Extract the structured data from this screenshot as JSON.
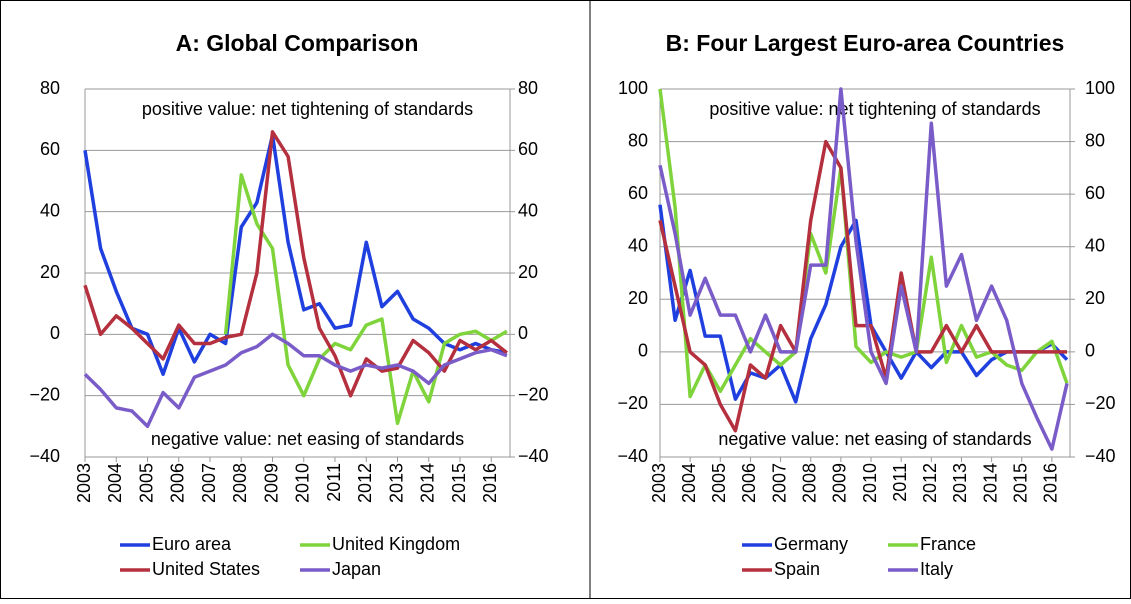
{
  "chart_data": [
    {
      "type": "line",
      "title": "A: Global Comparison",
      "annotations": [
        "positive value: net tightening of standards",
        "negative value: net easing of standards"
      ],
      "x": [
        2003,
        2003.5,
        2004,
        2004.5,
        2005,
        2005.5,
        2006,
        2006.5,
        2007,
        2007.5,
        2008,
        2008.5,
        2009,
        2009.5,
        2010,
        2010.5,
        2011,
        2011.5,
        2012,
        2012.5,
        2013,
        2013.5,
        2014,
        2014.5,
        2015,
        2015.5,
        2016,
        2016.5
      ],
      "xlim": [
        2003,
        2016.6
      ],
      "xticks": [
        2003,
        2004,
        2005,
        2006,
        2007,
        2008,
        2009,
        2010,
        2011,
        2012,
        2013,
        2014,
        2015,
        2016
      ],
      "ylim": [
        -40,
        80
      ],
      "yticks": [
        {
          "value": -40,
          "label": "−40"
        },
        {
          "value": -20,
          "label": "−20"
        },
        0,
        20,
        40,
        60,
        80
      ],
      "y2lim": [
        -40,
        80
      ],
      "y2ticks": [
        {
          "value": -40,
          "label": "−40"
        },
        {
          "value": -20,
          "label": "−20"
        },
        0,
        20,
        40,
        60,
        80
      ],
      "grid": true,
      "series": [
        {
          "name": "Euro area",
          "color": "#1f3fdf",
          "values": [
            60,
            28,
            14,
            2,
            0,
            -13,
            2,
            -9,
            0,
            -3,
            35,
            43,
            65,
            30,
            8,
            10,
            2,
            3,
            30,
            9,
            14,
            5,
            2,
            -3,
            -5,
            -3,
            -5,
            -6
          ]
        },
        {
          "name": "United Kingdom",
          "color": "#7ed43a",
          "values": [
            null,
            null,
            null,
            null,
            null,
            null,
            null,
            null,
            null,
            0,
            52,
            36,
            28,
            -10,
            -20,
            -8,
            -3,
            -5,
            3,
            5,
            -29,
            -12,
            -22,
            -3,
            0,
            1,
            -2,
            1
          ]
        },
        {
          "name": "United States",
          "color": "#b5303e",
          "values": [
            16,
            0,
            6,
            2,
            -3,
            -8,
            3,
            -3,
            -3,
            -1,
            0,
            20,
            66,
            58,
            25,
            2,
            -7,
            -20,
            -8,
            -12,
            -11,
            -2,
            -6,
            -12,
            -2,
            -5,
            -2,
            -6
          ]
        },
        {
          "name": "Japan",
          "color": "#7a5cc9",
          "values": [
            -13,
            -18,
            -24,
            -25,
            -30,
            -19,
            -24,
            -14,
            -12,
            -10,
            -6,
            -4,
            0,
            -3,
            -7,
            -7,
            -10,
            -12,
            -10,
            -11,
            -10,
            -12,
            -16,
            -10,
            -8,
            -6,
            -5,
            -7
          ]
        }
      ]
    },
    {
      "type": "line",
      "title": "B: Four Largest Euro-area Countries",
      "annotations": [
        "positive value: net tightening of standards",
        "negative value: net easing of standards"
      ],
      "x": [
        2003,
        2003.5,
        2004,
        2004.5,
        2005,
        2005.5,
        2006,
        2006.5,
        2007,
        2007.5,
        2008,
        2008.5,
        2009,
        2009.5,
        2010,
        2010.5,
        2011,
        2011.5,
        2012,
        2012.5,
        2013,
        2013.5,
        2014,
        2014.5,
        2015,
        2015.5,
        2016,
        2016.5
      ],
      "xlim": [
        2003,
        2016.6
      ],
      "xticks": [
        2003,
        2004,
        2005,
        2006,
        2007,
        2008,
        2009,
        2010,
        2011,
        2012,
        2013,
        2014,
        2015,
        2016
      ],
      "ylim": [
        -40,
        100
      ],
      "yticks": [
        {
          "value": -40,
          "label": "−40"
        },
        {
          "value": -20,
          "label": "−20"
        },
        0,
        20,
        40,
        60,
        80,
        100
      ],
      "y2lim": [
        -40,
        100
      ],
      "y2ticks": [
        {
          "value": -40,
          "label": "−40"
        },
        {
          "value": -20,
          "label": "−20"
        },
        0,
        20,
        40,
        60,
        80,
        100
      ],
      "grid": true,
      "series": [
        {
          "name": "Germany",
          "color": "#1f3fdf",
          "values": [
            56,
            12,
            31,
            6,
            6,
            -18,
            -8,
            -10,
            -5,
            -19,
            5,
            18,
            40,
            50,
            10,
            0,
            -10,
            0,
            -6,
            0,
            0,
            -9,
            -3,
            0,
            0,
            0,
            3,
            -3
          ]
        },
        {
          "name": "France",
          "color": "#7ed43a",
          "values": [
            100,
            55,
            -17,
            -5,
            -15,
            -5,
            5,
            0,
            -5,
            0,
            45,
            30,
            70,
            2,
            -4,
            0,
            -2,
            0,
            36,
            -4,
            10,
            -2,
            0,
            -5,
            -7,
            0,
            4,
            -12
          ]
        },
        {
          "name": "Spain",
          "color": "#b5303e",
          "values": [
            50,
            25,
            0,
            -5,
            -20,
            -30,
            -5,
            -10,
            10,
            0,
            50,
            80,
            70,
            10,
            10,
            -10,
            30,
            0,
            0,
            10,
            0,
            10,
            0,
            0,
            0,
            0,
            0,
            0
          ]
        },
        {
          "name": "Italy",
          "color": "#7a5cc9",
          "values": [
            71,
            45,
            14,
            28,
            14,
            14,
            0,
            14,
            0,
            0,
            33,
            33,
            100,
            42,
            0,
            -12,
            25,
            0,
            87,
            25,
            37,
            12,
            25,
            12,
            -12,
            -25,
            -37,
            -12
          ]
        }
      ]
    }
  ]
}
